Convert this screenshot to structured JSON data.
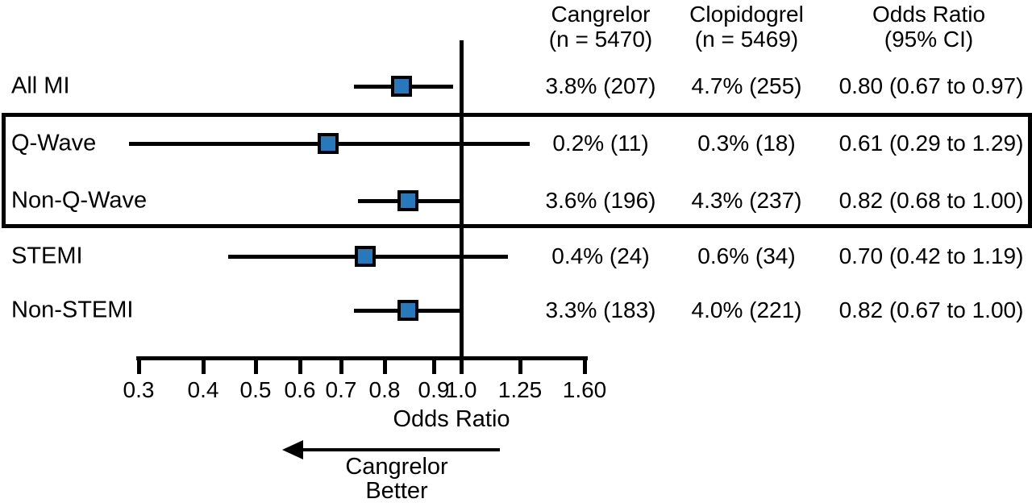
{
  "chart_data": {
    "type": "scatter",
    "subtype": "forest-plot",
    "title": "",
    "xlabel": "Odds Ratio",
    "axis": {
      "scale": "log",
      "xlim": [
        0.3,
        1.6
      ],
      "reference_line": 1.0,
      "ticks": [
        {
          "v": 0.3,
          "label": "0.3"
        },
        {
          "v": 0.4,
          "label": "0.4"
        },
        {
          "v": 0.5,
          "label": "0.5"
        },
        {
          "v": 0.6,
          "label": "0.6"
        },
        {
          "v": 0.7,
          "label": "0.7"
        },
        {
          "v": 0.8,
          "label": "0.8"
        },
        {
          "v": 0.9,
          "label": "0.9"
        },
        {
          "v": 1.0,
          "label": "1.0"
        },
        {
          "v": 1.25,
          "label": "1.25"
        },
        {
          "v": 1.6,
          "label": "1.60"
        }
      ]
    },
    "columns": {
      "cangrelor": {
        "line1": "Cangrelor",
        "line2": "(n = 5470)"
      },
      "clopidogrel": {
        "line1": "Clopidogrel",
        "line2": "(n = 5469)"
      },
      "odds_ratio": {
        "line1": "Odds Ratio",
        "line2": "(95% CI)"
      }
    },
    "rows": [
      {
        "label": "All MI",
        "or": 0.8,
        "ci_low": 0.67,
        "ci_high": 0.97,
        "cangrelor": "3.8% (207)",
        "clopidogrel": "4.7% (255)",
        "or_text": "0.80 (0.67 to 0.97)",
        "boxed": false
      },
      {
        "label": "Q-Wave",
        "or": 0.61,
        "ci_low": 0.29,
        "ci_high": 1.29,
        "cangrelor": "0.2% (11)",
        "clopidogrel": "0.3% (18)",
        "or_text": "0.61 (0.29 to 1.29)",
        "boxed": true
      },
      {
        "label": "Non-Q-Wave",
        "or": 0.82,
        "ci_low": 0.68,
        "ci_high": 1.0,
        "cangrelor": "3.6% (196)",
        "clopidogrel": "4.3% (237)",
        "or_text": "0.82 (0.68 to 1.00)",
        "boxed": true
      },
      {
        "label": "STEMI",
        "or": 0.7,
        "ci_low": 0.42,
        "ci_high": 1.19,
        "cangrelor": "0.4% (24)",
        "clopidogrel": "0.6% (34)",
        "or_text": "0.70 (0.42 to 1.19)",
        "boxed": false
      },
      {
        "label": "Non-STEMI",
        "or": 0.82,
        "ci_low": 0.67,
        "ci_high": 1.0,
        "cangrelor": "3.3% (183)",
        "clopidogrel": "4.0% (221)",
        "or_text": "0.82 (0.67 to 1.00)",
        "boxed": false
      }
    ],
    "direction_note": {
      "line1": "Cangrelor",
      "line2": "Better"
    },
    "colors": {
      "marker_fill": "#2878bc",
      "marker_border": "#000000",
      "line": "#000000",
      "text": "#000000"
    }
  }
}
